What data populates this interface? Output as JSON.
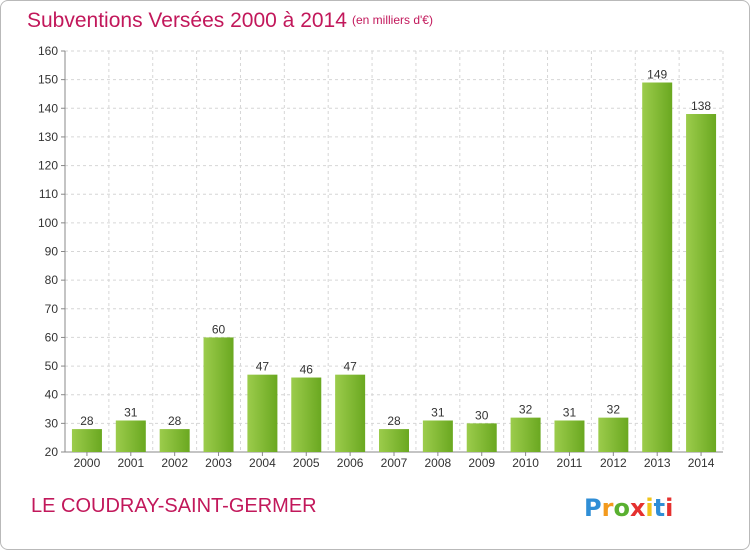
{
  "header": {
    "title": "Subventions Versées 2000 à 2014",
    "subtitle": "(en milliers d'€)"
  },
  "footer": {
    "commune": "LE COUDRAY-SAINT-GERMER",
    "logo_text": "Proxiti"
  },
  "colors": {
    "accent": "#c2185b",
    "bar_light": "#9ccc4c",
    "bar_dark": "#6aa820",
    "grid": "#d6d6d6"
  },
  "chart_data": {
    "type": "bar",
    "title": "Subventions Versées 2000 à 2014",
    "subtitle": "(en milliers d'€)",
    "xlabel": "",
    "ylabel": "",
    "categories": [
      "2000",
      "2001",
      "2002",
      "2003",
      "2004",
      "2005",
      "2006",
      "2007",
      "2008",
      "2009",
      "2010",
      "2011",
      "2012",
      "2013",
      "2014"
    ],
    "values": [
      28,
      31,
      28,
      60,
      47,
      46,
      47,
      28,
      31,
      30,
      32,
      31,
      32,
      149,
      138
    ],
    "ylim": [
      20,
      160
    ],
    "yticks": [
      20,
      30,
      40,
      50,
      60,
      70,
      80,
      90,
      100,
      110,
      120,
      130,
      140,
      150,
      160
    ],
    "grid": "horizontal dashed",
    "legend": "none"
  }
}
